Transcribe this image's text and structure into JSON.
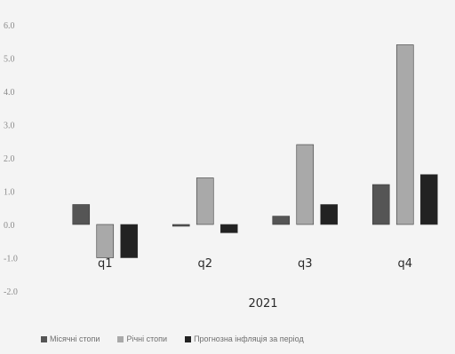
{
  "chart_data": {
    "type": "bar",
    "categories": [
      "q1",
      "q2",
      "q3",
      "q4"
    ],
    "group_label": "2021",
    "y_tick_labels": [
      "6.0",
      "5.0",
      "4.0",
      "3.0",
      "2.0",
      "1.0",
      "0.0",
      "-1.0",
      "-2.0"
    ],
    "ylim": [
      -2.0,
      6.0
    ],
    "grid": false,
    "legend_position": "bottom",
    "series": [
      {
        "name": "Місячні стопи",
        "color": "#555555",
        "values": [
          0.6,
          -0.05,
          0.25,
          1.2
        ]
      },
      {
        "name": "Річні стопи",
        "color": "#a9a9a9",
        "values": [
          -1.0,
          1.4,
          2.4,
          5.4
        ]
      },
      {
        "name": "Прогнозна інфляція за період",
        "color": "#222222",
        "values": [
          -1.0,
          -0.25,
          0.6,
          1.5
        ]
      }
    ],
    "title": "",
    "xlabel": "",
    "ylabel": ""
  }
}
